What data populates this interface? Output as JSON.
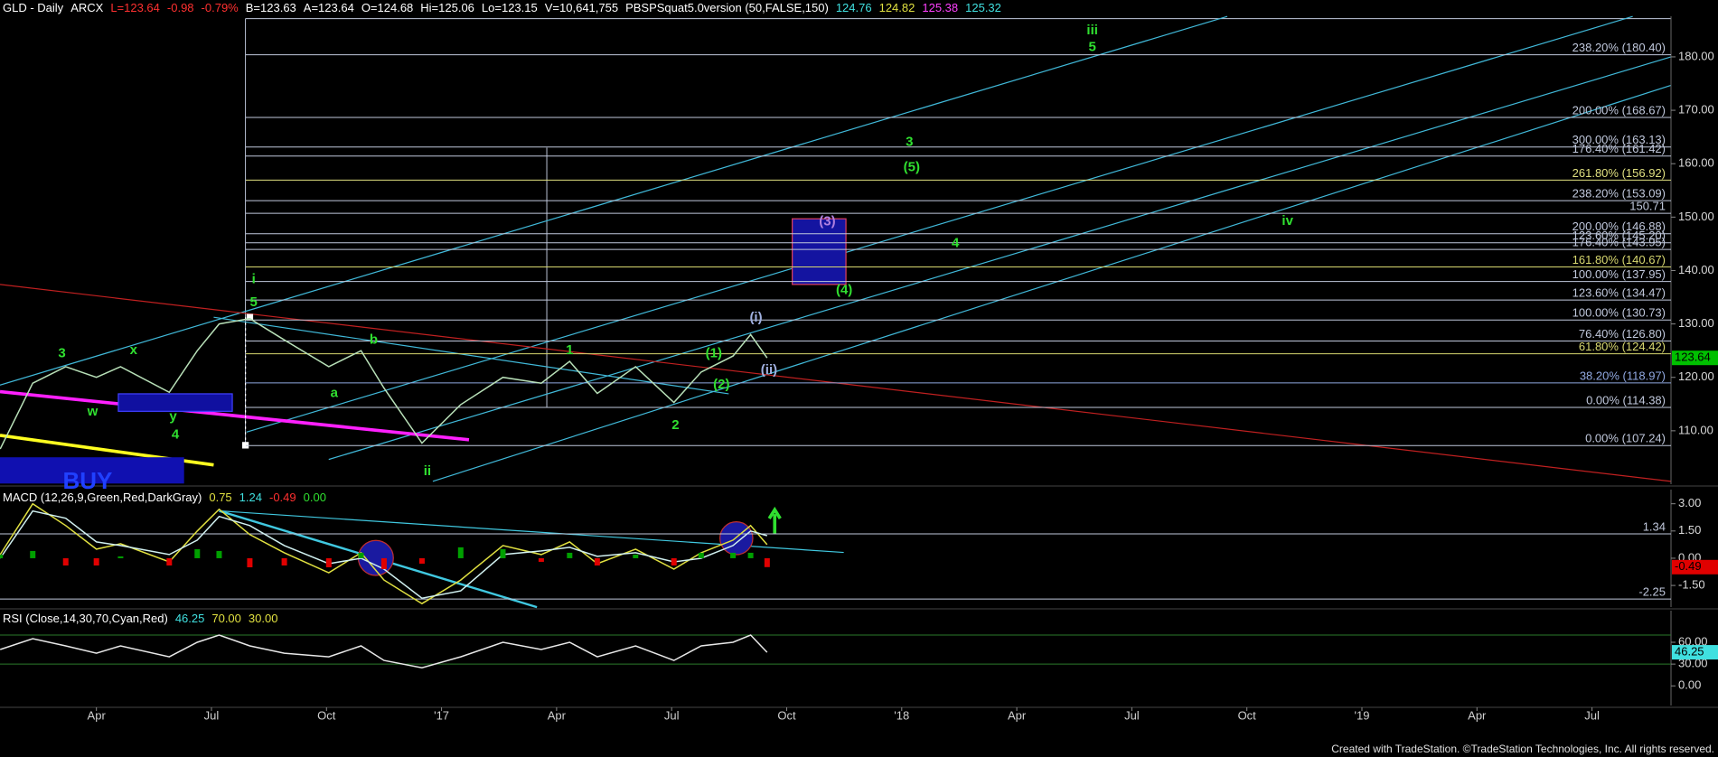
{
  "chart_data": [
    {
      "type": "line",
      "header": [
        {
          "text": "GLD - Daily",
          "color": "#ffffff"
        },
        {
          "text": "ARCX",
          "color": "#ffffff"
        },
        {
          "text": "L=123.64",
          "color": "#ff3030"
        },
        {
          "text": "-0.98",
          "color": "#ff3030"
        },
        {
          "text": "-0.79%",
          "color": "#ff3030"
        },
        {
          "text": "B=123.63",
          "color": "#ffffff"
        },
        {
          "text": "A=123.64",
          "color": "#ffffff"
        },
        {
          "text": "O=124.68",
          "color": "#ffffff"
        },
        {
          "text": "Hi=125.06",
          "color": "#ffffff"
        },
        {
          "text": "Lo=123.15",
          "color": "#ffffff"
        },
        {
          "text": "V=10,641,755",
          "color": "#ffffff"
        },
        {
          "text": "PBSPSquat5.0version (50,FALSE,150)",
          "color": "#ffffff"
        },
        {
          "text": "124.76",
          "color": "#40e0e0"
        },
        {
          "text": "124.82",
          "color": "#e0e040"
        },
        {
          "text": "125.38",
          "color": "#ff40ff"
        },
        {
          "text": "125.32",
          "color": "#40e0e0"
        }
      ],
      "x": [
        0.49,
        1.34,
        2.2,
        3,
        3.63,
        4.9,
        5.63,
        6.2,
        7,
        7.9,
        9.06,
        9.9,
        10.5,
        11.49,
        12.5,
        13.6,
        14.6,
        15.34,
        16.06,
        17.06,
        18.06,
        18.77,
        19.6,
        20.06,
        20.49
      ],
      "values": [
        106.6,
        118.9,
        122,
        120,
        122,
        117.2,
        125,
        130,
        131,
        127,
        122,
        125,
        118,
        107.7,
        114.9,
        120,
        118.9,
        123,
        117,
        122,
        115.3,
        121,
        124,
        128,
        123.64
      ],
      "color": "#b8e0b8",
      "xlim": [
        0.486,
        44.06
      ],
      "ylim": [
        100,
        187.6
      ],
      "yticks": [
        {
          "value": 110,
          "label": "110.00"
        },
        {
          "value": 120,
          "label": "120.00"
        },
        {
          "value": 130,
          "label": "130.00"
        },
        {
          "value": 140,
          "label": "140.00"
        },
        {
          "value": 150,
          "label": "150.00"
        },
        {
          "value": 160,
          "label": "160.00"
        },
        {
          "value": 170,
          "label": "170.00"
        },
        {
          "value": 180,
          "label": "180.00"
        }
      ],
      "levels": [
        {
          "value": 180.4,
          "label": "238.20% (180.40)",
          "color": "#c0c8dc"
        },
        {
          "value": 168.67,
          "label": "200.00% (168.67)",
          "color": "#c0c8dc"
        },
        {
          "value": 163.13,
          "label": "300.00% (163.13)",
          "color": "#c0c8dc"
        },
        {
          "value": 161.42,
          "label": "176.40% (161.42)",
          "color": "#c0c8dc"
        },
        {
          "value": 156.92,
          "label": "261.80% (156.92)",
          "color": "#e0e080"
        },
        {
          "value": 153.09,
          "label": "238.20% (153.09)",
          "color": "#c0c8dc"
        },
        {
          "value": 150.71,
          "label": "150.71",
          "color": "#c0c8dc"
        },
        {
          "value": 146.88,
          "label": "200.00% (146.88)",
          "color": "#c0c8dc"
        },
        {
          "value": 145.2,
          "label": "123.60% (145.20)",
          "color": "#c0c8dc"
        },
        {
          "value": 143.95,
          "label": "176.40% (143.95)",
          "color": "#c0c8dc"
        },
        {
          "value": 140.67,
          "label": "161.80% (140.67)",
          "color": "#d8d870"
        },
        {
          "value": 137.95,
          "label": "100.00% (137.95)",
          "color": "#c0c8dc"
        },
        {
          "value": 134.47,
          "label": "123.60% (134.47)",
          "color": "#c0c8dc"
        },
        {
          "value": 130.73,
          "label": "100.00% (130.73)",
          "color": "#c0c8dc"
        },
        {
          "value": 126.8,
          "label": "76.40% (126.80)",
          "color": "#c0c8dc"
        },
        {
          "value": 124.42,
          "label": "61.80% (124.42)",
          "color": "#d8d870"
        },
        {
          "value": 118.97,
          "label": "38.20% (118.97)",
          "color": "#90a8e0"
        },
        {
          "value": 114.38,
          "label": "0.00% (114.38)",
          "color": "#c0c8dc"
        },
        {
          "value": 107.24,
          "label": "0.00% (107.24)",
          "color": "#c0c8dc"
        }
      ],
      "annotations": [
        {
          "text": "iii",
          "x": 28.97,
          "y": 184.9,
          "color": "#30e030"
        },
        {
          "text": "5",
          "x": 28.97,
          "y": 181.8,
          "color": "#30e030"
        },
        {
          "text": "3",
          "x": 24.2,
          "y": 164.0,
          "color": "#30e030"
        },
        {
          "text": "(5)",
          "x": 24.26,
          "y": 159.3,
          "color": "#30e030"
        },
        {
          "text": "(3)",
          "x": 22.06,
          "y": 149.1,
          "color": "#b080e0"
        },
        {
          "text": "4",
          "x": 25.4,
          "y": 145.1,
          "color": "#30e030"
        },
        {
          "text": "iv",
          "x": 34.06,
          "y": 149.2,
          "color": "#30e030"
        },
        {
          "text": "(4)",
          "x": 22.5,
          "y": 136.3,
          "color": "#30e030"
        },
        {
          "text": "(i)",
          "x": 20.2,
          "y": 131.1,
          "color": "#a0b0e0"
        },
        {
          "text": "(ii)",
          "x": 20.54,
          "y": 121.3,
          "color": "#a0b0e0"
        },
        {
          "text": "1",
          "x": 15.34,
          "y": 125.0,
          "color": "#30e030"
        },
        {
          "text": "(1)",
          "x": 19.1,
          "y": 124.4,
          "color": "#30e030"
        },
        {
          "text": "(2)",
          "x": 19.3,
          "y": 118.6,
          "color": "#30e030"
        },
        {
          "text": "2",
          "x": 18.1,
          "y": 111.0,
          "color": "#30e030"
        },
        {
          "text": "i",
          "x": 7.1,
          "y": 138.3,
          "color": "#30e030"
        },
        {
          "text": "5",
          "x": 7.1,
          "y": 134.0,
          "color": "#30e030"
        },
        {
          "text": "3",
          "x": 2.1,
          "y": 124.4,
          "color": "#30e030"
        },
        {
          "text": "x",
          "x": 3.97,
          "y": 125.0,
          "color": "#30e030"
        },
        {
          "text": "w",
          "x": 2.9,
          "y": 113.5,
          "color": "#30e030"
        },
        {
          "text": "y",
          "x": 5.0,
          "y": 112.6,
          "color": "#30e030"
        },
        {
          "text": "4",
          "x": 5.06,
          "y": 109.2,
          "color": "#30e030"
        },
        {
          "text": "b",
          "x": 10.23,
          "y": 127.0,
          "color": "#30e030"
        },
        {
          "text": "a",
          "x": 9.2,
          "y": 117.0,
          "color": "#30e030"
        },
        {
          "text": "ii",
          "x": 11.63,
          "y": 102.4,
          "color": "#30e030"
        },
        {
          "text": "BUY",
          "x": 2.77,
          "y": 100.3,
          "color": "#2040ff"
        }
      ],
      "badges": [
        {
          "value": 123.64,
          "color": "#00c000"
        }
      ]
    },
    {
      "type": "macd",
      "header": [
        {
          "text": "MACD (12,26,9,Green,Red,DarkGray)",
          "color": "#ffffff"
        },
        {
          "text": "0.75",
          "color": "#e0e040"
        },
        {
          "text": "1.24",
          "color": "#40e0e0"
        },
        {
          "text": "-0.49",
          "color": "#ff3030"
        },
        {
          "text": "0.00",
          "color": "#30e030"
        }
      ],
      "x": [
        0.49,
        1.34,
        2.2,
        3,
        3.63,
        4.9,
        5.63,
        6.2,
        7,
        7.9,
        9.06,
        9.9,
        10.5,
        11.49,
        12.5,
        13.6,
        14.6,
        15.34,
        16.06,
        17.06,
        18.06,
        18.77,
        19.6,
        20.06,
        20.49
      ],
      "series": [
        {
          "color": "#e0e040",
          "values": [
            0.2,
            3.0,
            1.8,
            0.5,
            0.8,
            -0.2,
            1.5,
            2.7,
            1.3,
            0.3,
            -0.8,
            0.3,
            -1.2,
            -2.5,
            -1.2,
            0.7,
            0.2,
            0.9,
            -0.3,
            0.5,
            -0.6,
            0.3,
            1.0,
            1.8,
            0.75
          ]
        },
        {
          "color": "#d0f0f0",
          "values": [
            0.0,
            2.6,
            2.2,
            0.9,
            0.7,
            0.2,
            1.0,
            2.3,
            1.8,
            0.7,
            -0.3,
            0.0,
            -0.6,
            -2.2,
            -1.8,
            0.2,
            0.4,
            0.6,
            0.1,
            0.3,
            -0.2,
            0.0,
            0.7,
            1.5,
            1.24
          ]
        },
        {
          "style": "bar",
          "color": "#00a000",
          "negative_color": "#e00000",
          "values": [
            0.2,
            0.4,
            -0.4,
            -0.4,
            0.1,
            -0.4,
            0.5,
            0.4,
            -0.5,
            -0.4,
            -0.5,
            0.3,
            -0.6,
            -0.3,
            0.6,
            0.5,
            -0.2,
            0.3,
            -0.4,
            0.2,
            -0.4,
            0.3,
            0.3,
            0.3,
            -0.49
          ]
        }
      ],
      "xlim": [
        0.486,
        44.06
      ],
      "ylim": [
        -2.69,
        3.78
      ],
      "yticks": [
        {
          "value": 3,
          "label": "3.00"
        },
        {
          "value": 1.5,
          "label": "1.50"
        },
        {
          "value": 0,
          "label": "0.00"
        },
        {
          "value": -1.5,
          "label": "-1.50"
        }
      ],
      "levels": [
        1.34,
        -2.25
      ],
      "badges": [
        {
          "value": -0.49,
          "color": "#e00000"
        }
      ]
    },
    {
      "type": "line",
      "header": [
        {
          "text": "RSI (Close,14,30,70,Cyan,Red)",
          "color": "#ffffff"
        },
        {
          "text": "46.25",
          "color": "#40e0e0"
        },
        {
          "text": "70.00",
          "color": "#e0e040"
        },
        {
          "text": "30.00",
          "color": "#e0e040"
        }
      ],
      "x": [
        0.49,
        1.34,
        2.2,
        3,
        3.63,
        4.9,
        5.63,
        6.2,
        7,
        7.9,
        9.06,
        9.9,
        10.5,
        11.49,
        12.5,
        13.6,
        14.6,
        15.34,
        16.06,
        17.06,
        18.06,
        18.77,
        19.6,
        20.06,
        20.49
      ],
      "values": [
        50,
        65,
        55,
        45,
        55,
        40,
        60,
        70,
        55,
        45,
        40,
        55,
        35,
        25,
        40,
        60,
        50,
        60,
        40,
        55,
        35,
        55,
        60,
        70,
        46.25
      ],
      "color": "#e8e8e8",
      "xlim": [
        0.486,
        44.06
      ],
      "ylim": [
        -27,
        103.5
      ],
      "yticks": [
        {
          "value": 60,
          "label": "60.00"
        },
        {
          "value": 30,
          "label": "30.00"
        },
        {
          "value": 0,
          "label": "0.00"
        }
      ],
      "bands": [
        70,
        30
      ],
      "badges": [
        {
          "value": 46.25,
          "color": "#40e0e0"
        }
      ],
      "xticks": [
        {
          "value": 3,
          "label": "Apr"
        },
        {
          "value": 6,
          "label": "Jul"
        },
        {
          "value": 9,
          "label": "Oct"
        },
        {
          "value": 12,
          "label": "'17"
        },
        {
          "value": 15,
          "label": "Apr"
        },
        {
          "value": 18,
          "label": "Jul"
        },
        {
          "value": 21,
          "label": "Oct"
        },
        {
          "value": 24,
          "label": "'18"
        },
        {
          "value": 27,
          "label": "Apr"
        },
        {
          "value": 30,
          "label": "Jul"
        },
        {
          "value": 33,
          "label": "Oct"
        },
        {
          "value": 36,
          "label": "'19"
        },
        {
          "value": 39,
          "label": "Apr"
        },
        {
          "value": 42,
          "label": "Jul"
        }
      ]
    }
  ],
  "footer": "Created with TradeStation. ©TradeStation Technologies, Inc. All rights reserved."
}
